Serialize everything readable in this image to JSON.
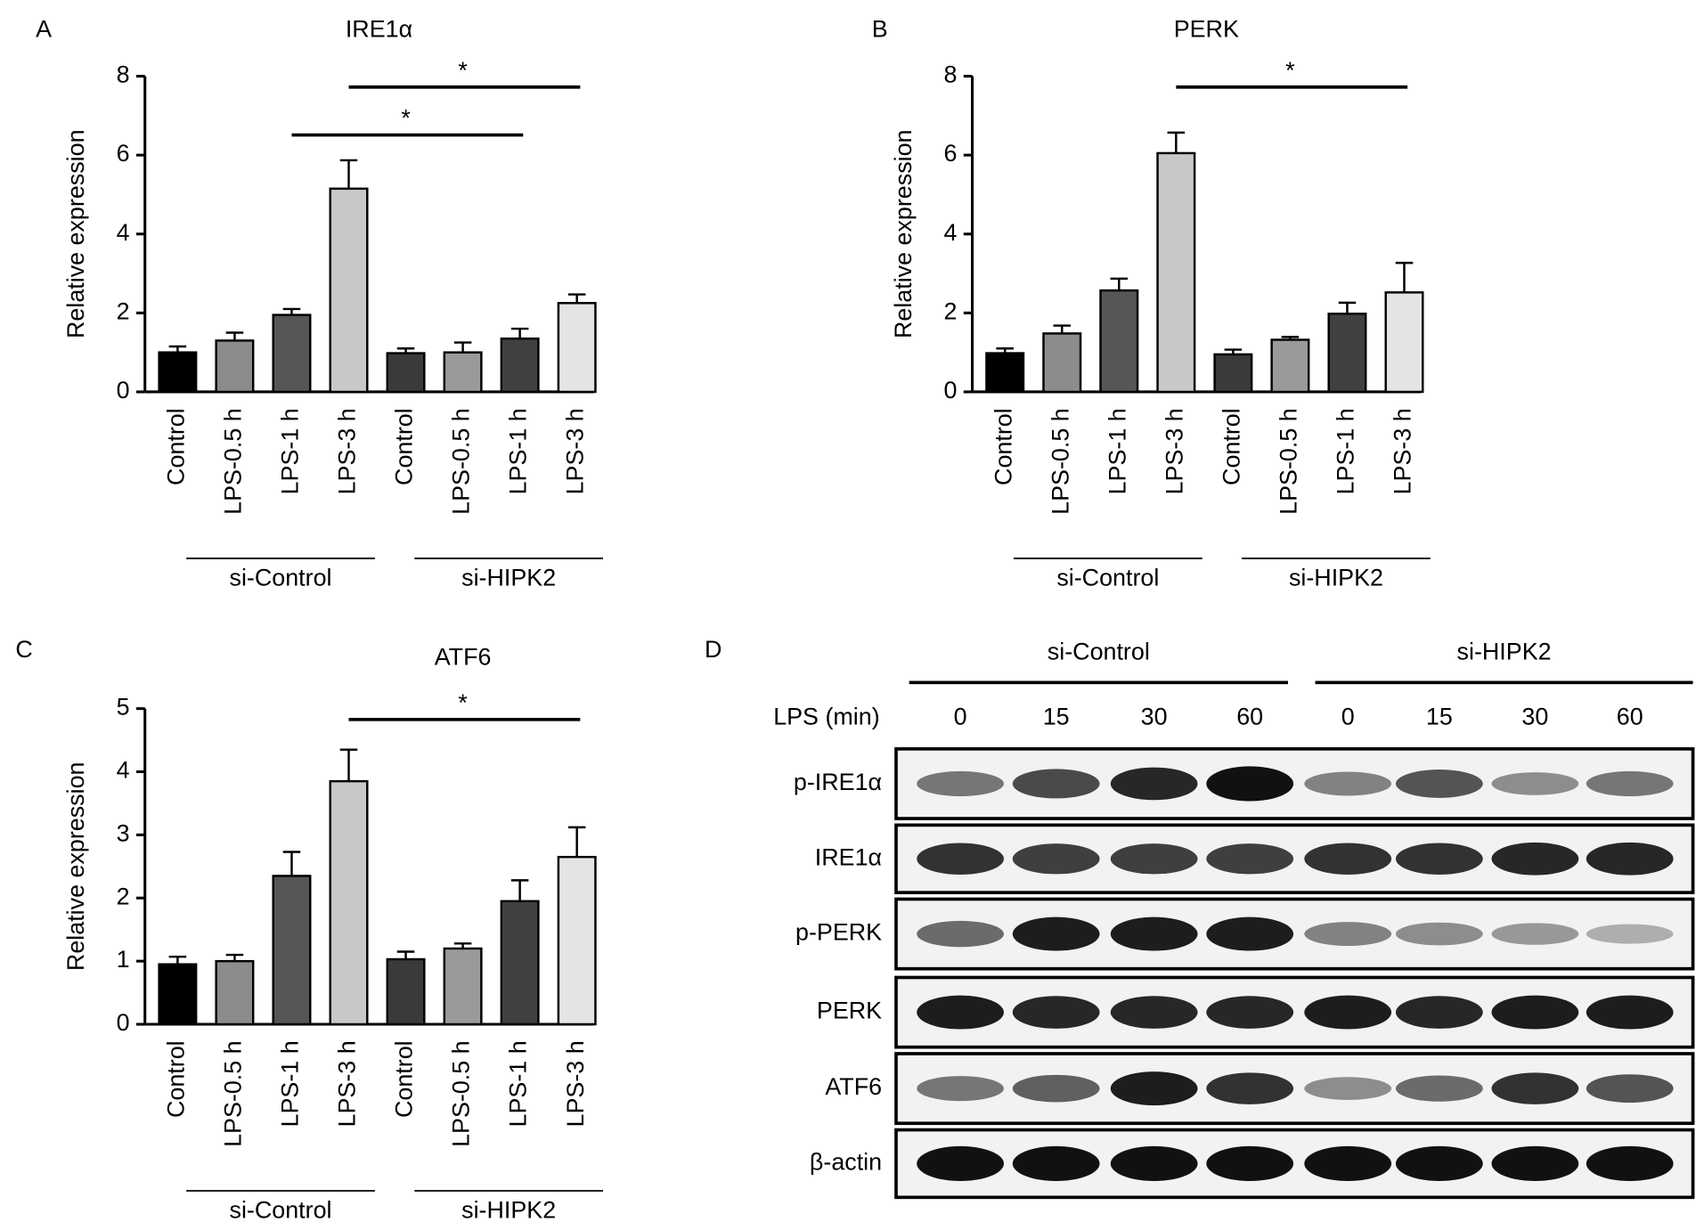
{
  "chart_data": [
    {
      "type": "bar",
      "panel": "A",
      "title": "IRE1α",
      "y_label": "Relative expression",
      "categories": [
        "Control",
        "LPS-0.5 h",
        "LPS-1 h",
        "LPS-3 h",
        "Control",
        "LPS-0.5 h",
        "LPS-1 h",
        "LPS-3 h"
      ],
      "values": [
        1.0,
        1.3,
        1.95,
        5.15,
        0.98,
        1.0,
        1.35,
        2.25
      ],
      "errors": [
        0.15,
        0.2,
        0.15,
        0.72,
        0.12,
        0.25,
        0.25,
        0.22
      ],
      "colors": [
        "#000000",
        "#8c8c8c",
        "#565656",
        "#c8c8c8",
        "#3a3a3a",
        "#9a9a9a",
        "#404040",
        "#e4e4e4"
      ],
      "groups": [
        "si-Control",
        "si-HIPK2"
      ],
      "annotations": [
        {
          "text": "*",
          "from": 2,
          "to": 6
        },
        {
          "text": "*",
          "from": 3,
          "to": 7
        }
      ],
      "ylim": [
        0,
        8
      ],
      "yticks": [
        0,
        2,
        4,
        6,
        8
      ]
    },
    {
      "type": "bar",
      "panel": "B",
      "title": "PERK",
      "y_label": "Relative expression",
      "categories": [
        "Control",
        "LPS-0.5 h",
        "LPS-1 h",
        "LPS-3 h",
        "Control",
        "LPS-0.5 h",
        "LPS-1 h",
        "LPS-3 h"
      ],
      "values": [
        0.98,
        1.48,
        2.57,
        6.05,
        0.95,
        1.32,
        1.98,
        2.52
      ],
      "errors": [
        0.12,
        0.2,
        0.3,
        0.52,
        0.12,
        0.07,
        0.28,
        0.75
      ],
      "colors": [
        "#000000",
        "#8c8c8c",
        "#565656",
        "#c8c8c8",
        "#3a3a3a",
        "#9a9a9a",
        "#404040",
        "#e4e4e4"
      ],
      "groups": [
        "si-Control",
        "si-HIPK2"
      ],
      "annotations": [
        {
          "text": "*",
          "from": 3,
          "to": 7
        }
      ],
      "ylim": [
        0,
        8
      ],
      "yticks": [
        0,
        2,
        4,
        6,
        8
      ]
    },
    {
      "type": "bar",
      "panel": "C",
      "title": "ATF6",
      "y_label": "Relative expression",
      "categories": [
        "Control",
        "LPS-0.5 h",
        "LPS-1 h",
        "LPS-3 h",
        "Control",
        "LPS-0.5 h",
        "LPS-1 h",
        "LPS-3 h"
      ],
      "values": [
        0.95,
        1.0,
        2.35,
        3.85,
        1.03,
        1.2,
        1.95,
        2.65
      ],
      "errors": [
        0.12,
        0.1,
        0.38,
        0.5,
        0.12,
        0.08,
        0.33,
        0.47
      ],
      "colors": [
        "#000000",
        "#8c8c8c",
        "#565656",
        "#c8c8c8",
        "#3a3a3a",
        "#9a9a9a",
        "#404040",
        "#e4e4e4"
      ],
      "groups": [
        "si-Control",
        "si-HIPK2"
      ],
      "annotations": [
        {
          "text": "*",
          "from": 3,
          "to": 7
        }
      ],
      "ylim": [
        0,
        5
      ],
      "yticks": [
        0,
        1,
        2,
        3,
        4,
        5
      ]
    }
  ],
  "blot": {
    "panel": "D",
    "groups": [
      "si-Control",
      "si-HIPK2"
    ],
    "lane_label": "LPS (min)",
    "lanes": [
      0,
      15,
      30,
      60,
      0,
      15,
      30,
      60
    ],
    "rows": [
      "p-IRE1α",
      "IRE1α",
      "p-PERK",
      "PERK",
      "ATF6",
      "β-actin"
    ]
  }
}
